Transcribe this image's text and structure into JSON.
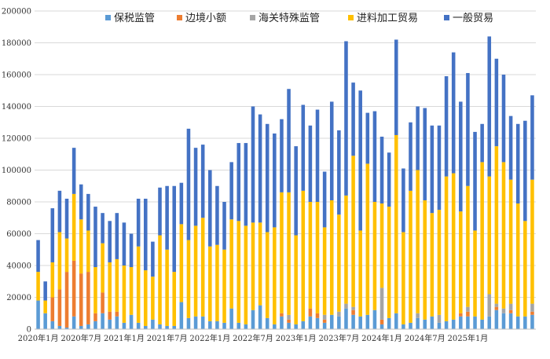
{
  "chart_data": {
    "type": "bar",
    "stacked": true,
    "title": "",
    "xlabel": "",
    "ylabel": "",
    "ylim": [
      0,
      200000
    ],
    "yticks": [
      "0",
      "20000",
      "40000",
      "60000",
      "80000",
      "100000",
      "120000",
      "140000",
      "160000",
      "180000",
      "200000"
    ],
    "ytick_values": [
      0,
      20000,
      40000,
      60000,
      80000,
      100000,
      120000,
      140000,
      160000,
      180000,
      200000
    ],
    "grid": true,
    "legend_position": "top",
    "xtick_labels": [
      {
        "index": 0,
        "label": "2020年1月"
      },
      {
        "index": 6,
        "label": "2020年7月"
      },
      {
        "index": 12,
        "label": "2021年1月"
      },
      {
        "index": 18,
        "label": "2021年7月"
      },
      {
        "index": 24,
        "label": "2022年1月"
      },
      {
        "index": 30,
        "label": "2022年7月"
      },
      {
        "index": 36,
        "label": "2023年1月"
      },
      {
        "index": 42,
        "label": "2023年7月"
      },
      {
        "index": 48,
        "label": "2024年1月"
      },
      {
        "index": 54,
        "label": "2024年7月"
      },
      {
        "index": 60,
        "label": "2025年1月"
      }
    ],
    "series": [
      {
        "name": "保税监管",
        "color": "#5b9bd5",
        "values": [
          18000,
          10000,
          5000,
          2000,
          1000,
          8000,
          2000,
          3000,
          5000,
          10000,
          6000,
          8000,
          4000,
          9000,
          4000,
          2000,
          6000,
          3000,
          2000,
          2000,
          17000,
          7000,
          8000,
          8000,
          5000,
          5000,
          4000,
          13000,
          4000,
          3000,
          12000,
          15000,
          7000,
          3000,
          8000,
          4000,
          3000,
          5000,
          8000,
          7000,
          4000,
          9000,
          8000,
          13000,
          9000,
          8000,
          9000,
          12000,
          3000,
          7000,
          10000,
          3000,
          4000,
          7000,
          6000,
          8000,
          4000,
          5000,
          6000,
          8000,
          8000,
          8000,
          6000,
          8000,
          12000,
          10000,
          10000,
          8000,
          8000,
          9000
        ]
      },
      {
        "name": "边境小额",
        "color": "#ed7d31",
        "values": [
          0,
          0,
          15000,
          23000,
          35000,
          35000,
          33000,
          33000,
          5000,
          13000,
          5000,
          3000,
          0,
          0,
          0,
          0,
          0,
          0,
          0,
          0,
          0,
          0,
          0,
          0,
          0,
          0,
          0,
          0,
          0,
          0,
          0,
          0,
          0,
          0,
          2000,
          2000,
          0,
          0,
          5000,
          3000,
          2000,
          0,
          0,
          0,
          3000,
          0,
          0,
          0,
          3000,
          0,
          0,
          0,
          0,
          0,
          0,
          0,
          0,
          0,
          0,
          2000,
          3000,
          0,
          0,
          0,
          2000,
          0,
          2000,
          0,
          0,
          2000
        ]
      },
      {
        "name": "海关特殊监管",
        "color": "#a5a5a5",
        "values": [
          0,
          0,
          0,
          0,
          0,
          0,
          0,
          0,
          0,
          0,
          0,
          0,
          0,
          0,
          0,
          0,
          0,
          0,
          0,
          0,
          0,
          0,
          0,
          0,
          0,
          0,
          0,
          0,
          0,
          0,
          0,
          0,
          0,
          0,
          0,
          3000,
          0,
          0,
          0,
          0,
          3000,
          0,
          3000,
          3000,
          2000,
          0,
          0,
          0,
          20000,
          0,
          0,
          0,
          0,
          3000,
          0,
          0,
          5000,
          0,
          0,
          0,
          3000,
          0,
          0,
          14000,
          2000,
          3000,
          4000,
          0,
          0,
          5000
        ]
      },
      {
        "name": "进料加工贸易",
        "color": "#ffc000",
        "values": [
          18000,
          8000,
          22000,
          36000,
          21000,
          42000,
          34000,
          26000,
          29000,
          31000,
          31000,
          33000,
          36000,
          30000,
          48000,
          35000,
          27000,
          56000,
          48000,
          34000,
          49000,
          49000,
          57000,
          62000,
          47000,
          48000,
          46000,
          56000,
          64000,
          62000,
          55000,
          52000,
          54000,
          61000,
          76000,
          77000,
          56000,
          82000,
          67000,
          70000,
          55000,
          72000,
          61000,
          68000,
          95000,
          54000,
          95000,
          68000,
          53000,
          70000,
          112000,
          58000,
          83000,
          90000,
          75000,
          65000,
          66000,
          91000,
          92000,
          64000,
          76000,
          54000,
          99000,
          74000,
          99000,
          92000,
          78000,
          71000,
          60000,
          78000
        ]
      },
      {
        "name": "一般贸易",
        "color": "#4472c4",
        "values": [
          20000,
          12000,
          34000,
          26000,
          25000,
          29000,
          22000,
          23000,
          38000,
          19000,
          26000,
          29000,
          27000,
          21000,
          30000,
          45000,
          22000,
          30000,
          40000,
          54000,
          26000,
          70000,
          49000,
          46000,
          48000,
          37000,
          30000,
          36000,
          49000,
          52000,
          73000,
          68000,
          68000,
          59000,
          46000,
          65000,
          56000,
          54000,
          48000,
          58000,
          35000,
          62000,
          53000,
          97000,
          46000,
          88000,
          32000,
          57000,
          42000,
          34000,
          60000,
          40000,
          43000,
          40000,
          58000,
          55000,
          53000,
          63000,
          76000,
          69000,
          71000,
          62000,
          24000,
          88000,
          55000,
          55000,
          40000,
          50000,
          63000,
          53000
        ]
      }
    ],
    "month_count": 70
  }
}
